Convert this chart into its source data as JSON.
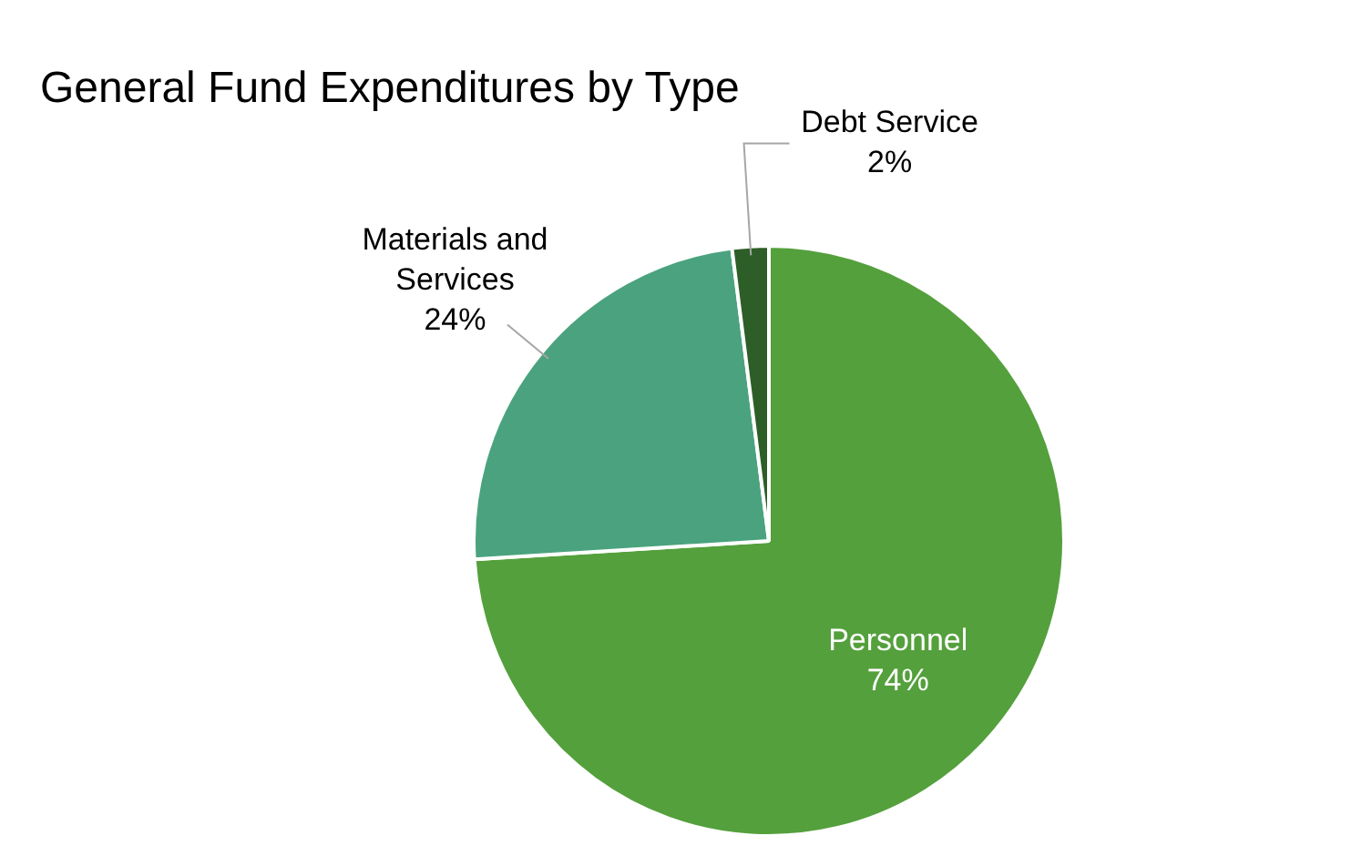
{
  "chart_data": {
    "type": "pie",
    "title": "General Fund Expenditures by Type",
    "categories": [
      "Personnel",
      "Materials and Services",
      "Debt Service"
    ],
    "values": [
      74,
      24,
      2
    ],
    "colors": [
      "#54a03c",
      "#4aa37e",
      "#2d5e27"
    ],
    "value_labels": [
      "74%",
      "24%",
      "2%"
    ],
    "legend": false
  }
}
